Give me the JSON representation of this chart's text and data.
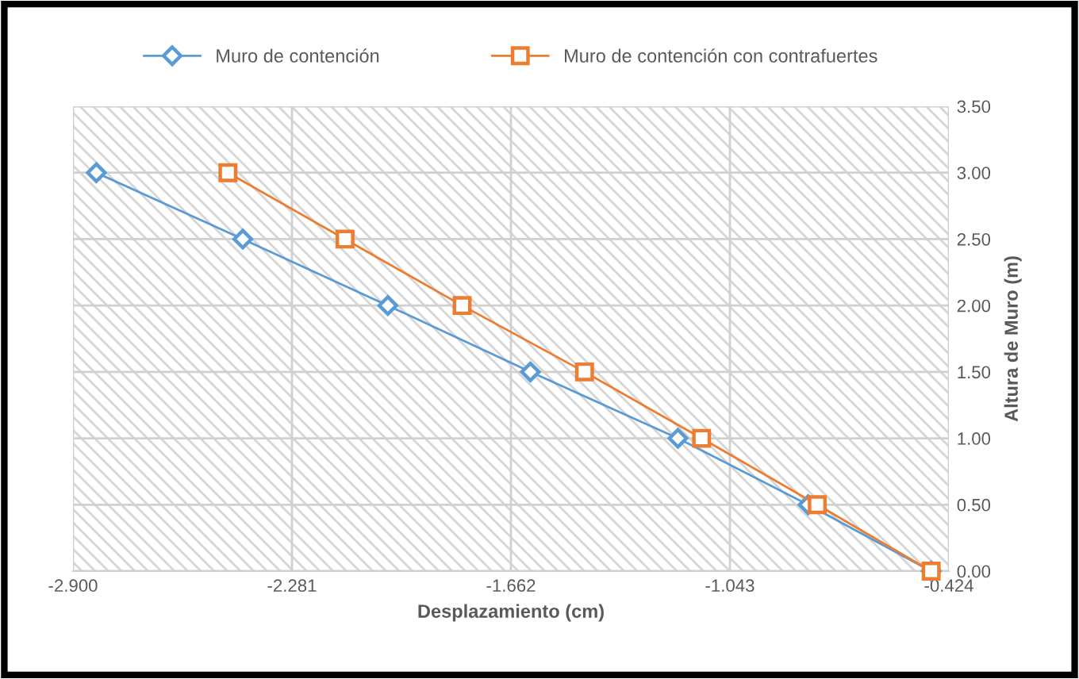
{
  "chart_data": {
    "type": "line",
    "xlabel": "Desplazamiento (cm)",
    "ylabel": "Altura de Muro (m)",
    "series": [
      {
        "name": "Muro de contención",
        "color": "#5b9bd5",
        "marker": "diamond",
        "x": [
          -2.834,
          -2.42,
          -2.01,
          -1.607,
          -1.19,
          -0.822,
          -0.474
        ],
        "values": [
          3.0,
          2.5,
          2.0,
          1.5,
          1.0,
          0.5,
          0.0
        ]
      },
      {
        "name": "Muro de contención con contrafuertes",
        "color": "#ed7d31",
        "marker": "square",
        "x": [
          -2.462,
          -2.131,
          -1.8,
          -1.454,
          -1.123,
          -0.796,
          -0.474
        ],
        "values": [
          3.0,
          2.5,
          2.0,
          1.5,
          1.0,
          0.5,
          0.0
        ]
      }
    ],
    "xlim": [
      -2.9,
      -0.424
    ],
    "xticks": [
      {
        "value": -2.9,
        "label": "-2.900"
      },
      -2.281,
      -1.662,
      -1.043,
      -0.424
    ],
    "ylim": [
      0,
      3.5
    ],
    "yticks": [
      {
        "value": 0,
        "label": "0.00"
      },
      {
        "value": 0.5,
        "label": "0.50"
      },
      {
        "value": 1,
        "label": "1.00"
      },
      {
        "value": 1.5,
        "label": "1.50"
      },
      {
        "value": 2,
        "label": "2.00"
      },
      {
        "value": 2.5,
        "label": "2.50"
      },
      {
        "value": 3,
        "label": "3.00"
      },
      {
        "value": 3.5,
        "label": "3.50"
      }
    ],
    "grid": true,
    "legend": "top",
    "line_style": "solid"
  }
}
